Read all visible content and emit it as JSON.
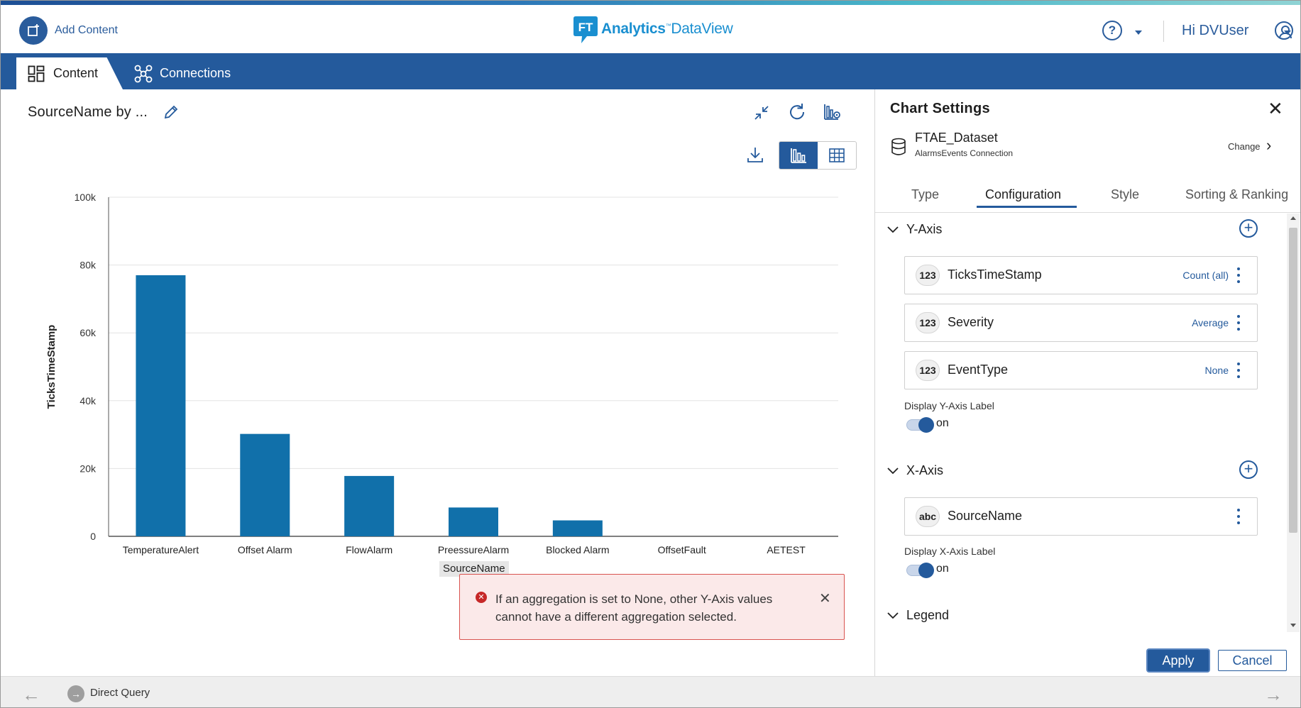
{
  "header": {
    "add_content_label": "Add Content",
    "logo_brand": "Analytics",
    "logo_tm": "™",
    "logo_product": "DataView",
    "user_greeting": "Hi DVUser"
  },
  "nav": {
    "tabs": [
      {
        "label": "Content",
        "active": true
      },
      {
        "label": "Connections",
        "active": false
      }
    ]
  },
  "chart_panel": {
    "title": "SourceName by ...",
    "view_mode": "chart"
  },
  "chart_data": {
    "type": "bar",
    "categories": [
      "TemperatureAlert",
      "Offset Alarm",
      "FlowAlarm",
      "PreessureAlarm",
      "Blocked Alarm",
      "OffsetFault",
      "AETEST"
    ],
    "series": [
      {
        "values": [
          77000,
          30200,
          17800,
          8500,
          4700,
          0,
          0
        ]
      }
    ],
    "xlabel": "SourceName",
    "ylabel": "TicksTimeStamp",
    "ylim": [
      0,
      100000
    ],
    "yticks": [
      0,
      20000,
      40000,
      60000,
      80000,
      100000
    ],
    "ytick_labels": [
      "0",
      "20k",
      "40k",
      "60k",
      "80k",
      "100k"
    ],
    "grid": true,
    "bar_color": "#1170aa"
  },
  "error": {
    "message": "If an aggregation is set to None, other Y-Axis values cannot have a different aggregation selected."
  },
  "footer": {
    "mode_label": "Direct Query"
  },
  "settings": {
    "title": "Chart Settings",
    "dataset_name": "FTAE_Dataset",
    "dataset_connection": "AlarmsEvents Connection",
    "change_label": "Change",
    "tabs": [
      "Type",
      "Configuration",
      "Style",
      "Sorting & Ranking"
    ],
    "active_tab": "Configuration",
    "y_axis": {
      "label": "Y-Axis",
      "fields": [
        {
          "type_badge": "123",
          "name": "TicksTimeStamp",
          "aggregation": "Count (all)"
        },
        {
          "type_badge": "123",
          "name": "Severity",
          "aggregation": "Average"
        },
        {
          "type_badge": "123",
          "name": "EventType",
          "aggregation": "None"
        }
      ],
      "display_label": "Display Y-Axis Label",
      "toggle_state": "on"
    },
    "x_axis": {
      "label": "X-Axis",
      "fields": [
        {
          "type_badge": "abc",
          "name": "SourceName",
          "aggregation": ""
        }
      ],
      "display_label": "Display X-Axis Label",
      "toggle_state": "on"
    },
    "legend_label": "Legend",
    "apply_label": "Apply",
    "cancel_label": "Cancel"
  },
  "colors": {
    "brand_blue": "#245a9c",
    "bar": "#1170aa",
    "error_bg": "#fbe9e9",
    "error_border": "#d9534f"
  }
}
